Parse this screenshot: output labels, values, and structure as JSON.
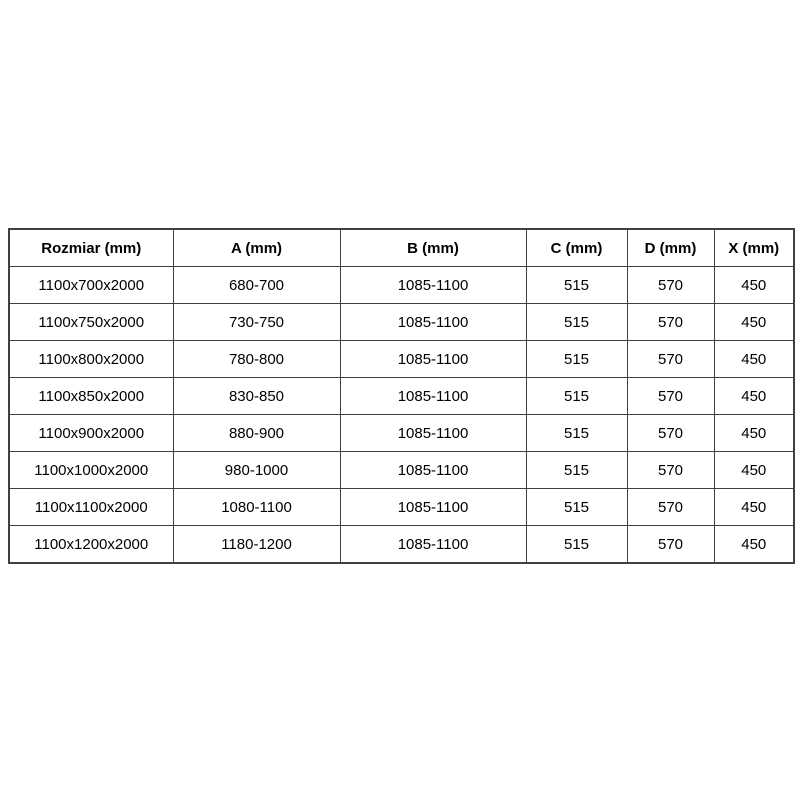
{
  "colors": {
    "background": "#ffffff",
    "border": "#3f3f3f",
    "text": "#000000"
  },
  "table": {
    "headers": [
      "Rozmiar (mm)",
      "A (mm)",
      "B (mm)",
      "C (mm)",
      "D (mm)",
      "X (mm)"
    ],
    "rows": [
      [
        "1100x700x2000",
        "680-700",
        "1085-1100",
        "515",
        "570",
        "450"
      ],
      [
        "1100x750x2000",
        "730-750",
        "1085-1100",
        "515",
        "570",
        "450"
      ],
      [
        "1100x800x2000",
        "780-800",
        "1085-1100",
        "515",
        "570",
        "450"
      ],
      [
        "1100x850x2000",
        "830-850",
        "1085-1100",
        "515",
        "570",
        "450"
      ],
      [
        "1100x900x2000",
        "880-900",
        "1085-1100",
        "515",
        "570",
        "450"
      ],
      [
        "1100x1000x2000",
        "980-1000",
        "1085-1100",
        "515",
        "570",
        "450"
      ],
      [
        "1100x1100x2000",
        "1080-1100",
        "1085-1100",
        "515",
        "570",
        "450"
      ],
      [
        "1100x1200x2000",
        "1180-1200",
        "1085-1100",
        "515",
        "570",
        "450"
      ]
    ]
  }
}
